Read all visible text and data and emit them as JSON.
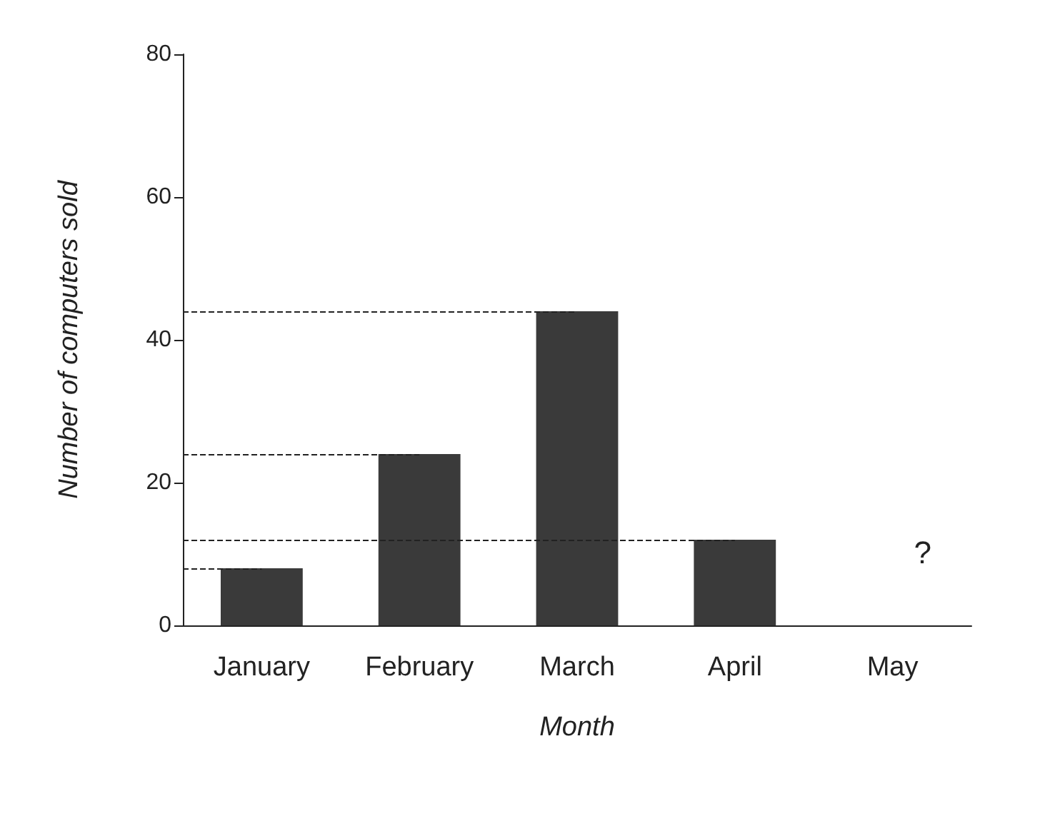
{
  "chart_data": {
    "type": "bar",
    "categories": [
      "January",
      "February",
      "March",
      "April",
      "May"
    ],
    "values": [
      8,
      24,
      44,
      12,
      null
    ],
    "color": "#3a3a3a",
    "xlabel": "Month",
    "ylabel": "Number of computers sold",
    "ylim": [
      0,
      80
    ],
    "yticks": [
      0,
      20,
      40,
      60,
      80
    ],
    "grid": false,
    "ref_lines": [
      {
        "axis": "y",
        "value": 44,
        "line_style": "dashed"
      },
      {
        "axis": "y",
        "value": 24,
        "line_style": "dashed"
      },
      {
        "axis": "y",
        "value": 12,
        "line_style": "dashed"
      },
      {
        "axis": "y",
        "value": 8,
        "line_style": "dashed"
      }
    ],
    "annotations": [
      "?"
    ]
  }
}
